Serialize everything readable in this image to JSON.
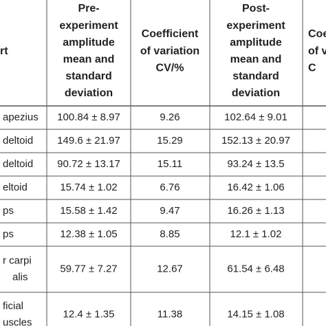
{
  "table": {
    "header": [
      [
        "rt"
      ],
      [
        "Pre-",
        "experiment",
        "amplitude",
        "mean and",
        "standard",
        "deviation"
      ],
      [
        "Coefficient",
        "of variation",
        "CV/%"
      ],
      [
        "Post-",
        "experiment",
        "amplitude",
        "mean and",
        "standard",
        "deviation"
      ],
      [
        "Coe",
        "of v",
        "C"
      ]
    ],
    "rows": [
      [
        [
          "apezius"
        ],
        "100.84 ± 8.97",
        "9.26",
        "102.64 ± 9.01"
      ],
      [
        [
          "deltoid"
        ],
        "149.6 ± 21.97",
        "15.29",
        "152.13 ± 20.97"
      ],
      [
        [
          "deltoid"
        ],
        "90.72 ± 13.17",
        "15.11",
        "93.24 ± 13.5"
      ],
      [
        [
          "eltoid"
        ],
        "15.74 ± 1.02",
        "6.76",
        "16.42 ± 1.06"
      ],
      [
        [
          "ps"
        ],
        "15.58 ± 1.42",
        "9.47",
        "16.26 ± 1.13"
      ],
      [
        [
          "ps"
        ],
        "12.38 ± 1.05",
        "8.85",
        "12.1 ± 1.02"
      ],
      [
        [
          "r carpi",
          "alis"
        ],
        "59.77 ± 7.27",
        "12.67",
        "61.54 ± 6.48"
      ],
      [
        [
          "ficial",
          "uscles"
        ],
        "12.4 ± 1.35",
        "11.38",
        "14.15 ± 1.08"
      ]
    ]
  }
}
